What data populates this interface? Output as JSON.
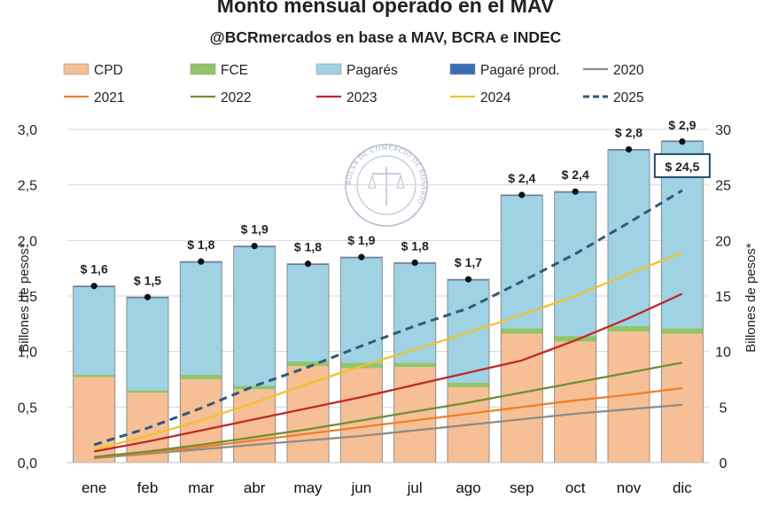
{
  "chart_data": {
    "type": "bar",
    "title": "Monto mensual operado en el MAV",
    "subtitle": "@BCRmercados en base a MAV, BCRA e INDEC",
    "categories": [
      "ene",
      "feb",
      "mar",
      "abr",
      "may",
      "jun",
      "jul",
      "ago",
      "sep",
      "oct",
      "nov",
      "dic"
    ],
    "ylabel_left": "Billones de pesos*",
    "ylabel_right": "Billones de pesos*",
    "ylim_left": [
      0,
      3
    ],
    "ylim_right": [
      0,
      30
    ],
    "yticks_left": [
      "0,0",
      "0,5",
      "1,0",
      "1,5",
      "2,0",
      "2,5",
      "3,0"
    ],
    "yticks_right": [
      "0",
      "5",
      "10",
      "15",
      "20",
      "25",
      "30"
    ],
    "grid": true,
    "legend_position": "top",
    "bar_series": [
      {
        "name": "CPD",
        "color": "#f7bf95",
        "values": [
          0.77,
          0.63,
          0.75,
          0.66,
          0.87,
          0.85,
          0.86,
          0.68,
          1.16,
          1.09,
          1.18,
          1.16
        ]
      },
      {
        "name": "FCE",
        "color": "#92c46a",
        "values": [
          0.02,
          0.02,
          0.04,
          0.03,
          0.04,
          0.05,
          0.04,
          0.04,
          0.05,
          0.05,
          0.05,
          0.05
        ]
      },
      {
        "name": "Pagarés",
        "color": "#9fd2e3",
        "values": [
          0.79,
          0.83,
          1.01,
          1.25,
          0.87,
          0.94,
          0.89,
          0.92,
          1.19,
          1.29,
          1.58,
          1.68
        ]
      },
      {
        "name": "Pagaré prod.",
        "color": "#3b6fb5",
        "values": [
          0.01,
          0.01,
          0.01,
          0.01,
          0.01,
          0.01,
          0.01,
          0.01,
          0.01,
          0.01,
          0.01,
          0.01
        ]
      }
    ],
    "totals": [
      1.59,
      1.49,
      1.81,
      1.95,
      1.79,
      1.85,
      1.8,
      1.65,
      2.41,
      2.44,
      2.82,
      2.89
    ],
    "total_labels": [
      "$ 1,6",
      "$ 1,5",
      "$ 1,8",
      "$ 1,9",
      "$ 1,8",
      "$ 1,9",
      "$ 1,8",
      "$ 1,7",
      "$ 2,4",
      "$ 2,4",
      "$ 2,8",
      "$ 2,9"
    ],
    "line_series": [
      {
        "name": "2020",
        "color": "#8c8c8c",
        "dash": false,
        "values": [
          0.4,
          0.8,
          1.2,
          1.6,
          2.0,
          2.4,
          2.9,
          3.4,
          3.9,
          4.4,
          4.8,
          5.2
        ]
      },
      {
        "name": "2021",
        "color": "#f07f2a",
        "dash": false,
        "values": [
          0.45,
          0.9,
          1.4,
          2.0,
          2.6,
          3.2,
          3.8,
          4.4,
          5.0,
          5.6,
          6.1,
          6.7
        ]
      },
      {
        "name": "2022",
        "color": "#6f8f35",
        "dash": false,
        "values": [
          0.5,
          1.0,
          1.6,
          2.3,
          3.0,
          3.8,
          4.6,
          5.4,
          6.3,
          7.2,
          8.1,
          9.0
        ]
      },
      {
        "name": "2023",
        "color": "#c0282a",
        "dash": false,
        "values": [
          1.0,
          1.9,
          2.9,
          3.9,
          4.9,
          5.9,
          7.0,
          8.1,
          9.2,
          11.0,
          13.0,
          15.2
        ]
      },
      {
        "name": "2024",
        "color": "#f0c22e",
        "dash": false,
        "values": [
          1.2,
          2.4,
          3.8,
          5.4,
          7.1,
          8.7,
          10.2,
          11.7,
          13.3,
          15.0,
          17.0,
          18.9
        ]
      },
      {
        "name": "2025",
        "color": "#2e5b78",
        "dash": true,
        "values": [
          1.6,
          3.1,
          4.9,
          6.9,
          8.6,
          10.5,
          12.3,
          13.9,
          16.3,
          18.8,
          21.6,
          24.5
        ]
      }
    ],
    "annotation": "$ 24,5",
    "watermark": "BOLSA DE COMERCIO DE ROSARIO"
  }
}
